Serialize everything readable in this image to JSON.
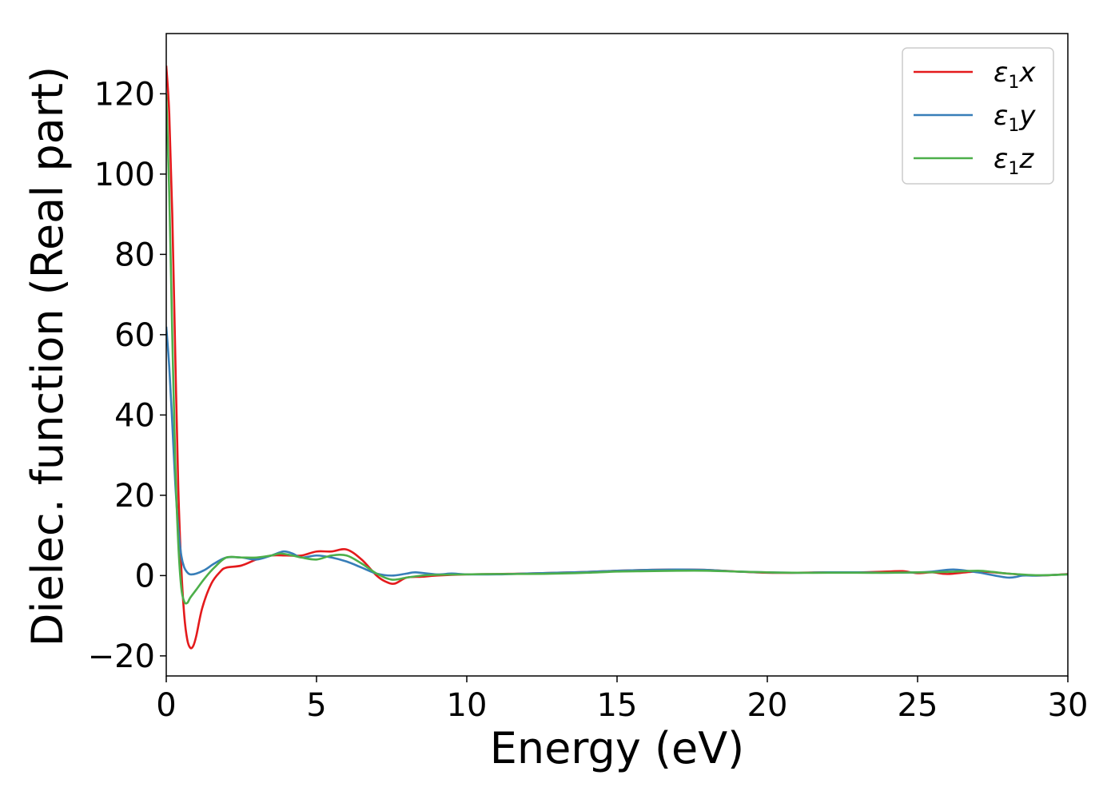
{
  "chart_data": {
    "type": "line",
    "title": "",
    "xlabel": "Energy (eV)",
    "ylabel": "Dielec. function (Real part)",
    "xlim": [
      0,
      30
    ],
    "ylim": [
      -25,
      135
    ],
    "xticks": [
      0,
      5,
      10,
      15,
      20,
      25,
      30
    ],
    "yticks": [
      -20,
      0,
      20,
      40,
      60,
      80,
      100,
      120
    ],
    "ytick_labels": [
      "−20",
      "0",
      "20",
      "40",
      "60",
      "80",
      "100",
      "120"
    ],
    "grid": false,
    "legend_position": "top-right",
    "series": [
      {
        "name": "ε₁x",
        "legend_main": "ε",
        "legend_sub": "1",
        "legend_tail": "x",
        "color": "#e41a1c",
        "x": [
          0,
          0.1,
          0.2,
          0.3,
          0.4,
          0.5,
          0.6,
          0.7,
          0.8,
          0.9,
          1.0,
          1.2,
          1.5,
          1.8,
          2.0,
          2.5,
          3.0,
          3.5,
          4.0,
          4.5,
          5.0,
          5.5,
          6.0,
          6.5,
          7.0,
          7.3,
          7.6,
          8.0,
          8.5,
          9.0,
          10,
          11,
          12,
          13,
          14,
          15,
          16,
          17,
          18,
          19,
          20,
          21,
          22,
          23,
          24,
          24.5,
          25,
          25.5,
          26,
          27,
          28,
          29,
          30
        ],
        "y": [
          127,
          115,
          90,
          55,
          22,
          2,
          -10,
          -16,
          -18,
          -17.5,
          -15,
          -8,
          -2,
          1,
          2,
          2.5,
          4,
          5,
          5,
          5,
          6,
          6,
          6.5,
          4,
          0,
          -1.5,
          -2,
          -0.5,
          -0.3,
          0,
          0.3,
          0.4,
          0.5,
          0.7,
          0.9,
          1.2,
          1.4,
          1.5,
          1.4,
          1.0,
          0.7,
          0.7,
          0.8,
          0.8,
          1.0,
          1.1,
          0.6,
          0.8,
          0.4,
          1.0,
          0.5,
          0,
          0.4
        ]
      },
      {
        "name": "ε₁y",
        "legend_main": "ε",
        "legend_sub": "1",
        "legend_tail": "y",
        "color": "#377eb8",
        "x": [
          0,
          0.1,
          0.2,
          0.3,
          0.4,
          0.5,
          0.6,
          0.7,
          0.8,
          1.0,
          1.3,
          1.6,
          2.0,
          2.5,
          3.0,
          3.5,
          3.9,
          4.2,
          4.5,
          5.0,
          5.5,
          6.0,
          6.5,
          7.0,
          7.5,
          8.0,
          8.3,
          9.0,
          9.5,
          10,
          11,
          12,
          13,
          14,
          15,
          16,
          17,
          18,
          19,
          20,
          21,
          22,
          23,
          24,
          25,
          25.5,
          26.2,
          27,
          28,
          28.5,
          29,
          30
        ],
        "y": [
          62,
          52,
          38,
          23,
          12,
          5,
          2,
          0.8,
          0.3,
          0.5,
          1.5,
          3,
          4.5,
          4.5,
          4.0,
          5,
          6,
          5.5,
          4.5,
          5,
          4.5,
          3.5,
          2,
          0.5,
          0,
          0.5,
          0.8,
          0.3,
          0.5,
          0.3,
          0.3,
          0.5,
          0.7,
          0.9,
          1.2,
          1.4,
          1.5,
          1.4,
          1.0,
          0.8,
          0.7,
          0.8,
          0.8,
          0.7,
          0.8,
          1.0,
          1.5,
          0.8,
          -0.5,
          0,
          0,
          0.3
        ]
      },
      {
        "name": "ε₁z",
        "legend_main": "ε",
        "legend_sub": "1",
        "legend_tail": "z",
        "color": "#4daf4a",
        "x": [
          0,
          0.1,
          0.2,
          0.3,
          0.4,
          0.5,
          0.6,
          0.7,
          0.8,
          1.0,
          1.3,
          1.6,
          2.0,
          2.5,
          3.0,
          3.5,
          3.8,
          4.2,
          4.5,
          5.0,
          5.5,
          6.0,
          6.5,
          7.0,
          7.5,
          8.0,
          8.5,
          9.0,
          10,
          11,
          12,
          13,
          14,
          15,
          16,
          17,
          18,
          19,
          20,
          21,
          22,
          23,
          24,
          25,
          26,
          27,
          27.5,
          28,
          29,
          30
        ],
        "y": [
          120,
          95,
          60,
          28,
          8,
          -3,
          -6.5,
          -6.8,
          -5.5,
          -3.5,
          -0.5,
          2,
          4.5,
          4.5,
          4.5,
          5,
          5.5,
          5,
          4.5,
          4,
          5,
          5,
          3,
          0.5,
          -1,
          -0.5,
          0,
          0.2,
          0.3,
          0.4,
          0.4,
          0.5,
          0.7,
          1.0,
          1.1,
          1.2,
          1.2,
          1.0,
          0.8,
          0.7,
          0.7,
          0.7,
          0.7,
          0.8,
          0.9,
          1.2,
          0.9,
          0.5,
          0.1,
          0.3
        ]
      }
    ]
  }
}
